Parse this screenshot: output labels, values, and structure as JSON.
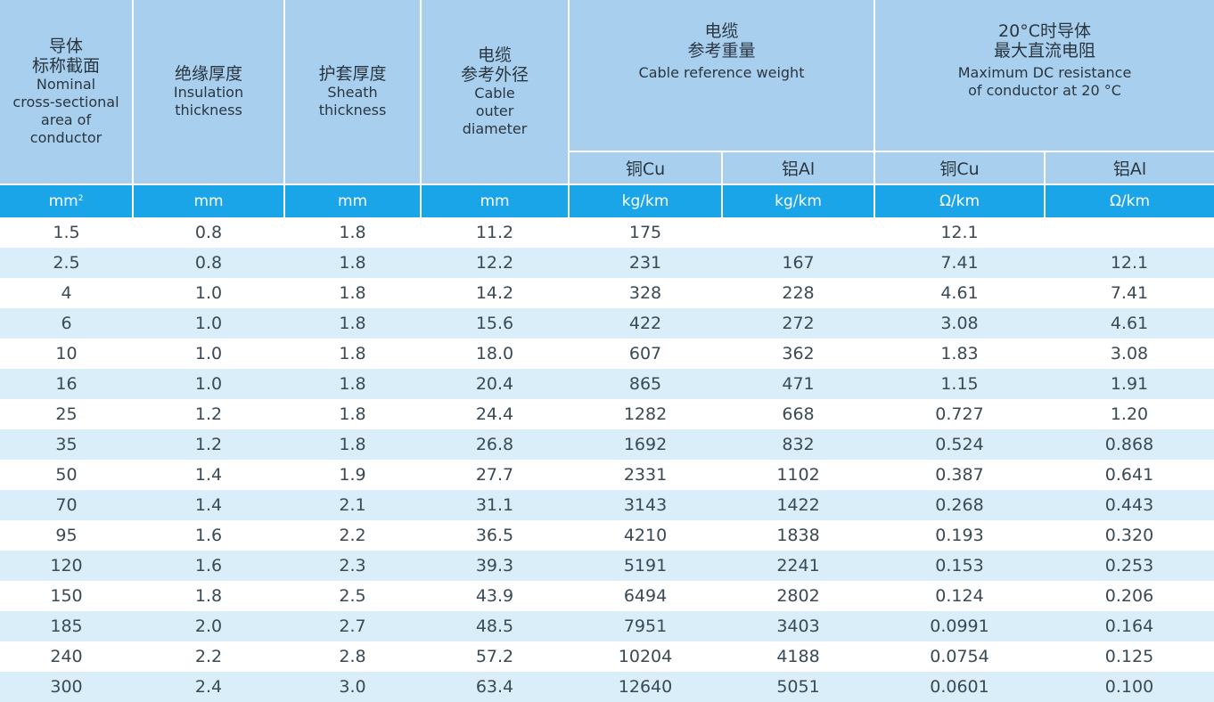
{
  "headers": {
    "conductor": {
      "zh": "导体\n标称截面",
      "en": "Nominal\ncross-sectional\narea of\nconductor"
    },
    "insulation": {
      "zh": "绝缘厚度",
      "en": "Insulation\nthickness"
    },
    "sheath": {
      "zh": "护套厚度",
      "en": "Sheath\nthickness"
    },
    "diameter": {
      "zh": "电缆\n参考外径",
      "en": "Cable\nouter\ndiameter"
    },
    "weight": {
      "zh": "电缆\n参考重量",
      "en": "Cable reference weight"
    },
    "resistance": {
      "zh": "20°C时导体\n最大直流电阻",
      "en": "Maximum DC resistance\nof conductor at 20 °C"
    },
    "weight_cu": "铜Cu",
    "weight_al": "铝Al",
    "res_cu": "铜Cu",
    "res_al": "铝Al"
  },
  "units": {
    "area": "mm",
    "area_sup": "2",
    "insulation": "mm",
    "sheath": "mm",
    "diameter": "mm",
    "weight_cu": "kg/km",
    "weight_al": "kg/km",
    "res_cu": "Ω/km",
    "res_al": "Ω/km"
  },
  "rows": [
    [
      "1.5",
      "0.8",
      "1.8",
      "11.2",
      "175",
      "",
      "12.1",
      ""
    ],
    [
      "2.5",
      "0.8",
      "1.8",
      "12.2",
      "231",
      "167",
      "7.41",
      "12.1"
    ],
    [
      "4",
      "1.0",
      "1.8",
      "14.2",
      "328",
      "228",
      "4.61",
      "7.41"
    ],
    [
      "6",
      "1.0",
      "1.8",
      "15.6",
      "422",
      "272",
      "3.08",
      "4.61"
    ],
    [
      "10",
      "1.0",
      "1.8",
      "18.0",
      "607",
      "362",
      "1.83",
      "3.08"
    ],
    [
      "16",
      "1.0",
      "1.8",
      "20.4",
      "865",
      "471",
      "1.15",
      "1.91"
    ],
    [
      "25",
      "1.2",
      "1.8",
      "24.4",
      "1282",
      "668",
      "0.727",
      "1.20"
    ],
    [
      "35",
      "1.2",
      "1.8",
      "26.8",
      "1692",
      "832",
      "0.524",
      "0.868"
    ],
    [
      "50",
      "1.4",
      "1.9",
      "27.7",
      "2331",
      "1102",
      "0.387",
      "0.641"
    ],
    [
      "70",
      "1.4",
      "2.1",
      "31.1",
      "3143",
      "1422",
      "0.268",
      "0.443"
    ],
    [
      "95",
      "1.6",
      "2.2",
      "36.5",
      "4210",
      "1838",
      "0.193",
      "0.320"
    ],
    [
      "120",
      "1.6",
      "2.3",
      "39.3",
      "5191",
      "2241",
      "0.153",
      "0.253"
    ],
    [
      "150",
      "1.8",
      "2.5",
      "43.9",
      "6494",
      "2802",
      "0.124",
      "0.206"
    ],
    [
      "185",
      "2.0",
      "2.7",
      "48.5",
      "7951",
      "3403",
      "0.0991",
      "0.164"
    ],
    [
      "240",
      "2.2",
      "2.8",
      "57.2",
      "10204",
      "4188",
      "0.0754",
      "0.125"
    ],
    [
      "300",
      "2.4",
      "3.0",
      "63.4",
      "12640",
      "5051",
      "0.0601",
      "0.100"
    ]
  ]
}
